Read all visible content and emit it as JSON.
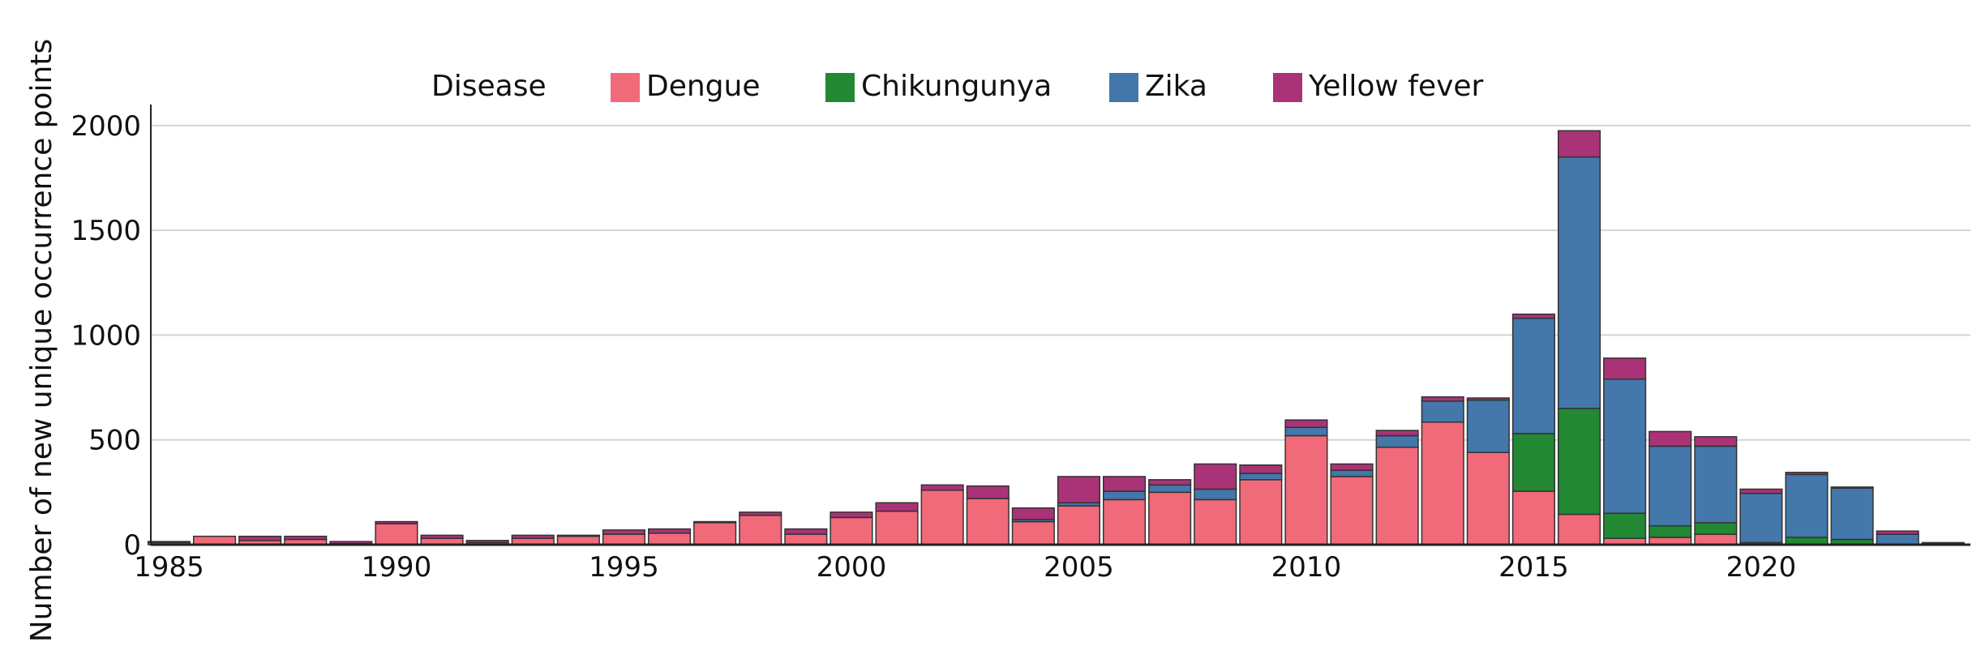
{
  "chart_data": {
    "type": "bar",
    "stacked": true,
    "xlabel": "",
    "ylabel": "Number of new unique occurrence points",
    "ylim": [
      0,
      2100
    ],
    "y_ticks": [
      0,
      500,
      1000,
      1500,
      2000
    ],
    "y_grid": true,
    "legend": {
      "title": "Disease",
      "placement": "top"
    },
    "x_range": [
      1984.6,
      2024.6
    ],
    "x_ticks": [
      1985,
      1990,
      1995,
      2000,
      2005,
      2010,
      2015,
      2020
    ],
    "x_tick_labels": [
      "1985",
      "1990",
      "1995",
      "2000",
      "2005",
      "2010",
      "2015",
      "2020"
    ],
    "categories": [
      1985,
      1986,
      1987,
      1988,
      1989,
      1990,
      1991,
      1992,
      1993,
      1994,
      1995,
      1996,
      1997,
      1998,
      1999,
      2000,
      2001,
      2002,
      2003,
      2004,
      2005,
      2006,
      2007,
      2008,
      2009,
      2010,
      2011,
      2012,
      2013,
      2014,
      2015,
      2016,
      2017,
      2018,
      2019,
      2020,
      2021,
      2022,
      2023,
      2024
    ],
    "series": [
      {
        "name": "Dengue",
        "color": "#F06A7A",
        "values": [
          10,
          40,
          20,
          25,
          5,
          100,
          30,
          10,
          30,
          40,
          50,
          55,
          105,
          140,
          50,
          130,
          160,
          260,
          220,
          110,
          185,
          215,
          250,
          215,
          310,
          520,
          325,
          465,
          585,
          440,
          255,
          145,
          30,
          35,
          50,
          0,
          0,
          0,
          0,
          0
        ]
      },
      {
        "name": "Chikungunya",
        "color": "#228833",
        "values": [
          0,
          0,
          0,
          0,
          0,
          0,
          0,
          0,
          0,
          0,
          0,
          0,
          0,
          0,
          0,
          0,
          0,
          0,
          0,
          0,
          0,
          0,
          0,
          0,
          0,
          0,
          0,
          0,
          0,
          0,
          275,
          505,
          120,
          55,
          55,
          10,
          35,
          25,
          0,
          0
        ]
      },
      {
        "name": "Zika",
        "color": "#4477AA",
        "values": [
          0,
          0,
          0,
          0,
          0,
          0,
          0,
          0,
          0,
          0,
          0,
          0,
          0,
          0,
          0,
          0,
          0,
          0,
          0,
          10,
          15,
          40,
          35,
          50,
          30,
          40,
          30,
          55,
          100,
          250,
          550,
          1200,
          640,
          380,
          365,
          235,
          300,
          245,
          50,
          5
        ]
      },
      {
        "name": "Yellow fever",
        "color": "#AA3377",
        "values": [
          5,
          0,
          20,
          15,
          10,
          10,
          15,
          10,
          15,
          5,
          20,
          20,
          5,
          15,
          25,
          25,
          40,
          25,
          60,
          55,
          125,
          70,
          25,
          120,
          40,
          35,
          30,
          25,
          20,
          10,
          20,
          125,
          100,
          70,
          45,
          20,
          10,
          5,
          15,
          5
        ]
      }
    ]
  }
}
